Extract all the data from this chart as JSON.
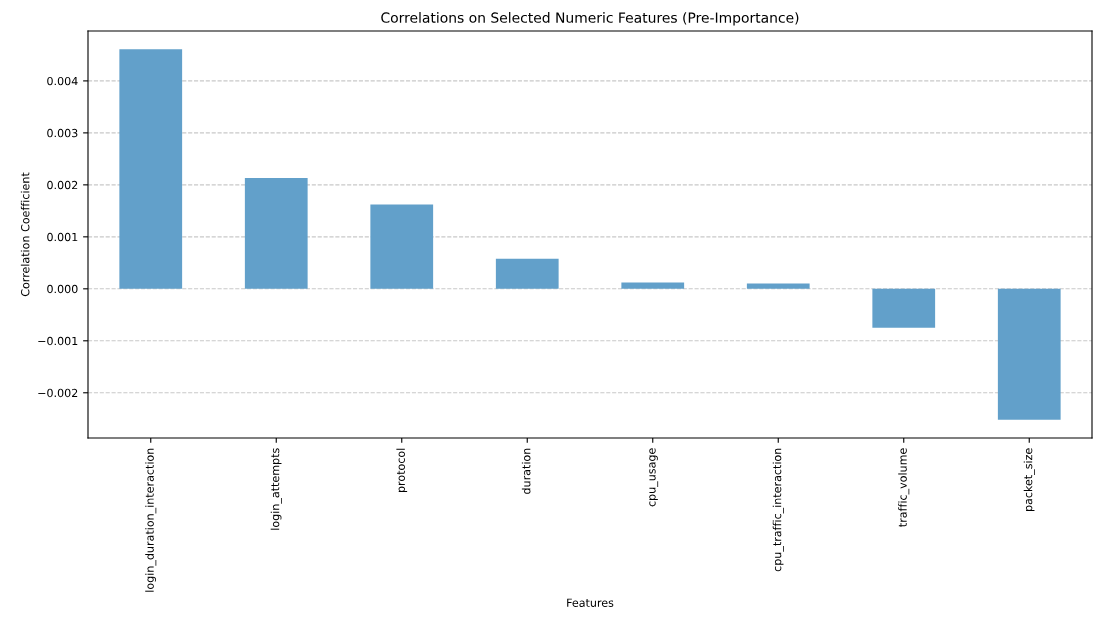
{
  "chart_data": {
    "type": "bar",
    "title": "Correlations on Selected Numeric Features (Pre-Importance)",
    "xlabel": "Features",
    "ylabel": "Correlation Coefficient",
    "categories": [
      "login_duration_interaction",
      "login_attempts",
      "protocol",
      "duration",
      "cpu_usage",
      "cpu_traffic_interaction",
      "traffic_volume",
      "packet_size"
    ],
    "values": [
      0.00461,
      0.00213,
      0.00162,
      0.00058,
      0.00012,
      0.0001,
      -0.00075,
      -0.00252
    ],
    "color": "#62a0ca",
    "ylim": [
      -0.00287,
      0.00496
    ],
    "yticks": [
      {
        "value": -0.002,
        "label": "−0.002"
      },
      {
        "value": -0.001,
        "label": "−0.001"
      },
      {
        "value": 0,
        "label": "0.000"
      },
      {
        "value": 0.001,
        "label": "0.001"
      },
      {
        "value": 0.002,
        "label": "0.002"
      },
      {
        "value": 0.003,
        "label": "0.003"
      },
      {
        "value": 0.004,
        "label": "0.004"
      }
    ],
    "grid": "y",
    "line_style": "dashed"
  }
}
